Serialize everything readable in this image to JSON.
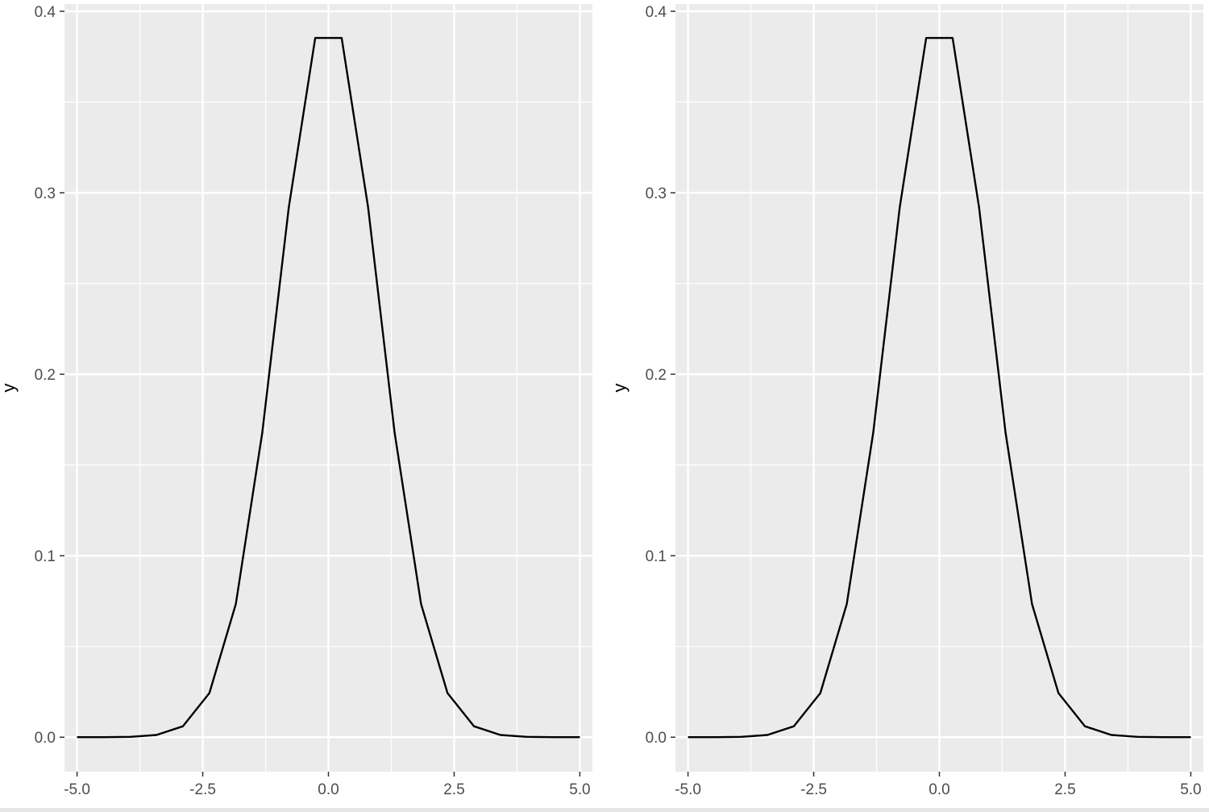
{
  "chart_data": [
    {
      "type": "line",
      "title": "",
      "xlabel": "",
      "ylabel": "y",
      "xlim": [
        -5.25,
        5.25
      ],
      "ylim": [
        -0.019,
        0.404
      ],
      "x_ticks": [
        -5.0,
        -2.5,
        0.0,
        2.5,
        5.0
      ],
      "x_tick_labels": [
        "-5.0",
        "-2.5",
        "0.0",
        "2.5",
        "5.0"
      ],
      "y_ticks": [
        0.0,
        0.1,
        0.2,
        0.3,
        0.4
      ],
      "y_tick_labels": [
        "0.0",
        "0.1",
        "0.2",
        "0.3",
        "0.4"
      ],
      "grid": true,
      "legend": "none",
      "colors": {
        "panel": "#ebebeb",
        "grid": "#ffffff",
        "line": "#000000",
        "tick_text": "#4d4d4d"
      },
      "series": [
        {
          "x": [
            -5.0,
            -4.474,
            -3.947,
            -3.421,
            -2.895,
            -2.368,
            -1.842,
            -1.316,
            -0.789,
            -0.263,
            0.263,
            0.789,
            1.316,
            1.842,
            2.368,
            2.895,
            3.421,
            3.947,
            4.474,
            5.0
          ],
          "values": [
            0.0,
            0.0,
            0.0002,
            0.0012,
            0.006,
            0.0243,
            0.0734,
            0.1678,
            0.292,
            0.3853,
            0.3853,
            0.292,
            0.1678,
            0.0734,
            0.0243,
            0.006,
            0.0012,
            0.0002,
            0.0,
            0.0
          ]
        }
      ]
    },
    {
      "type": "line",
      "title": "",
      "xlabel": "",
      "ylabel": "y",
      "xlim": [
        -5.25,
        5.25
      ],
      "ylim": [
        -0.019,
        0.404
      ],
      "x_ticks": [
        -5.0,
        -2.5,
        0.0,
        2.5,
        5.0
      ],
      "x_tick_labels": [
        "-5.0",
        "-2.5",
        "0.0",
        "2.5",
        "5.0"
      ],
      "y_ticks": [
        0.0,
        0.1,
        0.2,
        0.3,
        0.4
      ],
      "y_tick_labels": [
        "0.0",
        "0.1",
        "0.2",
        "0.3",
        "0.4"
      ],
      "grid": true,
      "legend": "none",
      "colors": {
        "panel": "#ebebeb",
        "grid": "#ffffff",
        "line": "#000000",
        "tick_text": "#4d4d4d"
      },
      "series": [
        {
          "x": [
            -5.0,
            -4.474,
            -3.947,
            -3.421,
            -2.895,
            -2.368,
            -1.842,
            -1.316,
            -0.789,
            -0.263,
            0.263,
            0.789,
            1.316,
            1.842,
            2.368,
            2.895,
            3.421,
            3.947,
            4.474,
            5.0
          ],
          "values": [
            0.0,
            0.0,
            0.0002,
            0.0012,
            0.006,
            0.0243,
            0.0734,
            0.1678,
            0.292,
            0.3853,
            0.3853,
            0.292,
            0.1678,
            0.0734,
            0.0243,
            0.006,
            0.0012,
            0.0002,
            0.0,
            0.0
          ]
        }
      ]
    }
  ]
}
